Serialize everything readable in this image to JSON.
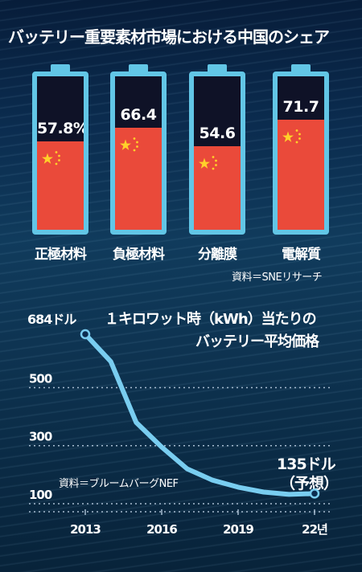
{
  "headline": "バッテリー重要素材市場における中国のシェア",
  "chart_data": [
    {
      "type": "bar",
      "title": "バッテリー重要素材市場における中国のシェア",
      "categories": [
        "正極材料",
        "負極材料",
        "分離膜",
        "電解質"
      ],
      "values": [
        57.8,
        66.4,
        54.6,
        71.7
      ],
      "value_labels": [
        "57.8%",
        "66.4",
        "54.6",
        "71.7"
      ],
      "unit": "%",
      "ylim": [
        0,
        100
      ],
      "source": "資料＝SNEリサーチ",
      "colors": {
        "fill": "#ea4a3a",
        "empty": "#0f1227",
        "frame": "#62c6e6"
      }
    },
    {
      "type": "line",
      "title": "１キロワット時（kWh）当たりのバッテリー平均価格",
      "title_lines": [
        "１キロワット時（kWh）当たりの",
        "バッテリー平均価格"
      ],
      "x": [
        2013,
        2014,
        2015,
        2016,
        2017,
        2018,
        2019,
        2020,
        2021,
        2022
      ],
      "y": [
        684,
        590,
        380,
        295,
        220,
        181,
        157,
        140,
        132,
        135
      ],
      "xticks": [
        {
          "value": 2013,
          "label": "2013"
        },
        {
          "value": 2016,
          "label": "2016"
        },
        {
          "value": 2019,
          "label": "2019"
        },
        {
          "value": 2022,
          "label": "22년"
        }
      ],
      "yticks": [
        {
          "value": 100,
          "label": "100"
        },
        {
          "value": 300,
          "label": "300"
        },
        {
          "value": 500,
          "label": "500"
        }
      ],
      "xlim": [
        2013,
        2022
      ],
      "ylim": [
        100,
        684
      ],
      "start_label": "684ドル",
      "end_label": [
        "135ドル",
        "（予想）"
      ],
      "source": "資料＝ブルームバーグNEF",
      "grid": true,
      "colors": {
        "line": "#79cdf0",
        "grid": "#a7bcd0"
      }
    }
  ]
}
